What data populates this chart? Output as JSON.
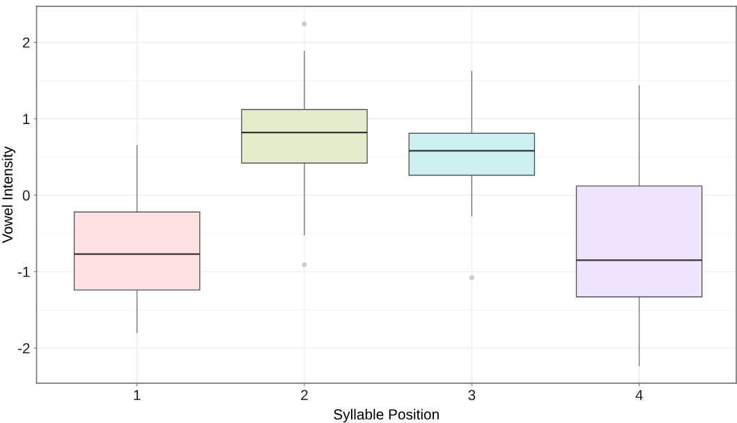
{
  "chart_data": {
    "type": "box",
    "xlabel": "Syllable Position",
    "ylabel": "Vowel Intensity",
    "categories": [
      "1",
      "2",
      "3",
      "4"
    ],
    "colors": [
      "#fde2e1",
      "#e3edcc",
      "#ccf0f0",
      "#f0e3fc"
    ],
    "boxes": [
      {
        "low": -1.8,
        "q1": -1.24,
        "median": -0.77,
        "q3": -0.22,
        "high": 0.65
      },
      {
        "low": -0.52,
        "q1": 0.42,
        "median": 0.82,
        "q3": 1.12,
        "high": 1.88,
        "outliers": [
          2.24,
          -0.91
        ]
      },
      {
        "low": -0.27,
        "q1": 0.26,
        "median": 0.58,
        "q3": 0.81,
        "high": 1.62,
        "outliers": [
          -1.08
        ]
      },
      {
        "low": -2.23,
        "q1": -1.33,
        "median": -0.85,
        "q3": 0.12,
        "high": 1.43
      }
    ],
    "ylim": [
      -2.46,
      2.47
    ],
    "yticks": [
      -2,
      -1,
      0,
      1,
      2
    ],
    "grid": true
  }
}
